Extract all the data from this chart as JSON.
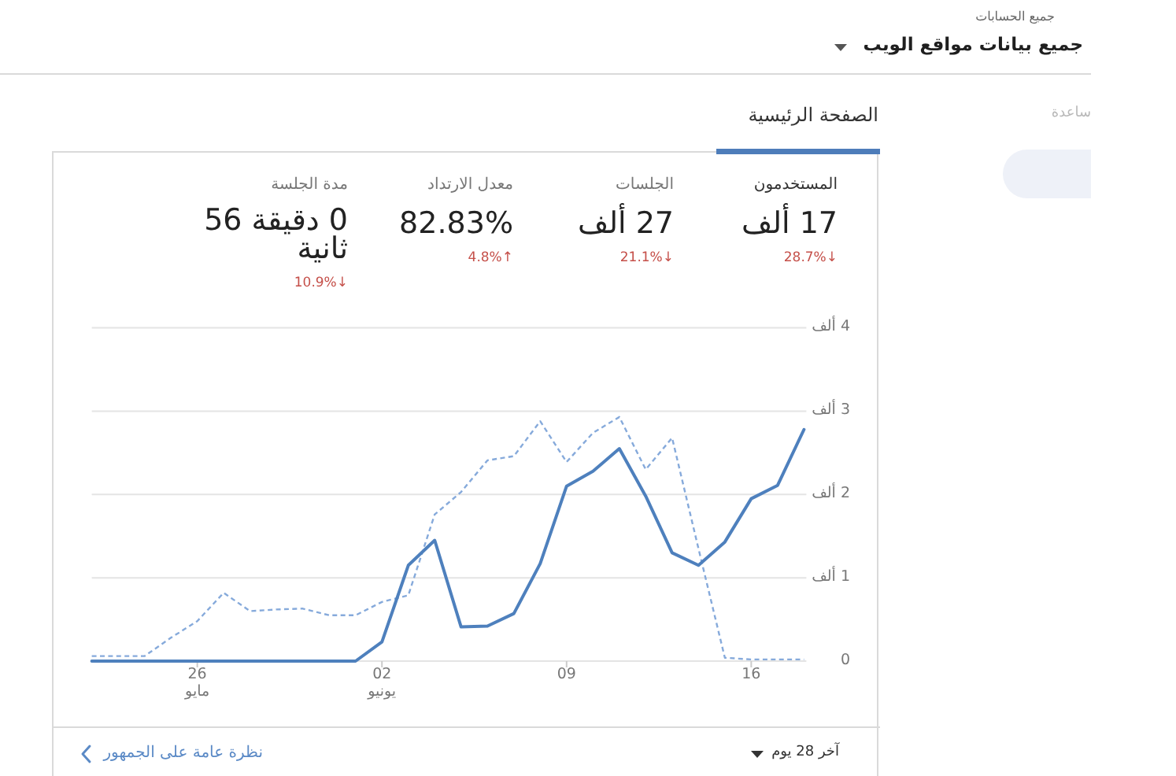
{
  "chart_data": {
    "type": "line",
    "title": "جميع بيانات مواقع الويب",
    "subtitle": "الصفحة الرئيسية",
    "x": [
      "--05-22",
      "--05-23",
      "--05-24",
      "--05-25",
      "--05-26",
      "--05-27",
      "--05-28",
      "--05-29",
      "--05-30",
      "--05-31",
      "--06-01",
      "--06-02",
      "--06-03",
      "--06-04",
      "--06-05",
      "--06-06",
      "--06-07",
      "--06-08",
      "--06-09",
      "--06-10",
      "--06-11",
      "--06-12",
      "--06-13",
      "--06-14",
      "--06-15",
      "--06-16",
      "--06-17",
      "--06-18"
    ],
    "xlim": [
      "--05-22",
      "--06-18"
    ],
    "xticks": [
      {
        "value": "--05-26",
        "label": "26 مايو"
      },
      {
        "value": "--06-02",
        "label": "02 يونيو"
      },
      {
        "value": "--06-09",
        "label": "09"
      },
      {
        "value": "--06-16",
        "label": "16"
      }
    ],
    "ylim": [
      0,
      4
    ],
    "yticks": [
      0,
      {
        "value": 1,
        "label": "1 ألف"
      },
      {
        "value": 2,
        "label": "2 ألف"
      },
      {
        "value": 3,
        "label": "3 ألف"
      },
      {
        "value": 4,
        "label": "4 ألف"
      }
    ],
    "grid": "y",
    "series": [
      {
        "color": "#4e80bd",
        "line_style": "solid",
        "values": [
          0,
          0,
          0,
          0,
          0,
          0,
          0,
          0,
          0,
          0,
          0,
          0.23,
          1.15,
          1.45,
          0.41,
          0.42,
          0.57,
          1.17,
          2.1,
          2.28,
          2.55,
          1.98,
          1.3,
          1.15,
          1.43,
          1.95,
          2.11,
          2.78
        ]
      },
      {
        "color": "#86aadb",
        "line_style": "dashed",
        "values": [
          0.06,
          0.06,
          0.06,
          0.28,
          0.48,
          0.82,
          0.6,
          0.62,
          0.63,
          0.55,
          0.55,
          0.71,
          0.79,
          1.76,
          2.03,
          2.41,
          2.46,
          2.88,
          2.39,
          2.74,
          2.93,
          2.3,
          2.68,
          1.35,
          0.04,
          0.02,
          0.02,
          0.02
        ]
      }
    ],
    "annotations": [
      "جميع الحسابات",
      "ساعدة",
      "المستخدمون",
      "17 ألف",
      "28.7%↓",
      "الجلسات",
      "27 ألف",
      "21.1%↓",
      "معدل الارتداد",
      "82.83%",
      "4.8%↑",
      "مدة الجلسة",
      "0 دقيقة 56 ثانية",
      "10.9%↓",
      "آخر 28 يوم",
      "نظرة عامة على الجمهور"
    ]
  }
}
